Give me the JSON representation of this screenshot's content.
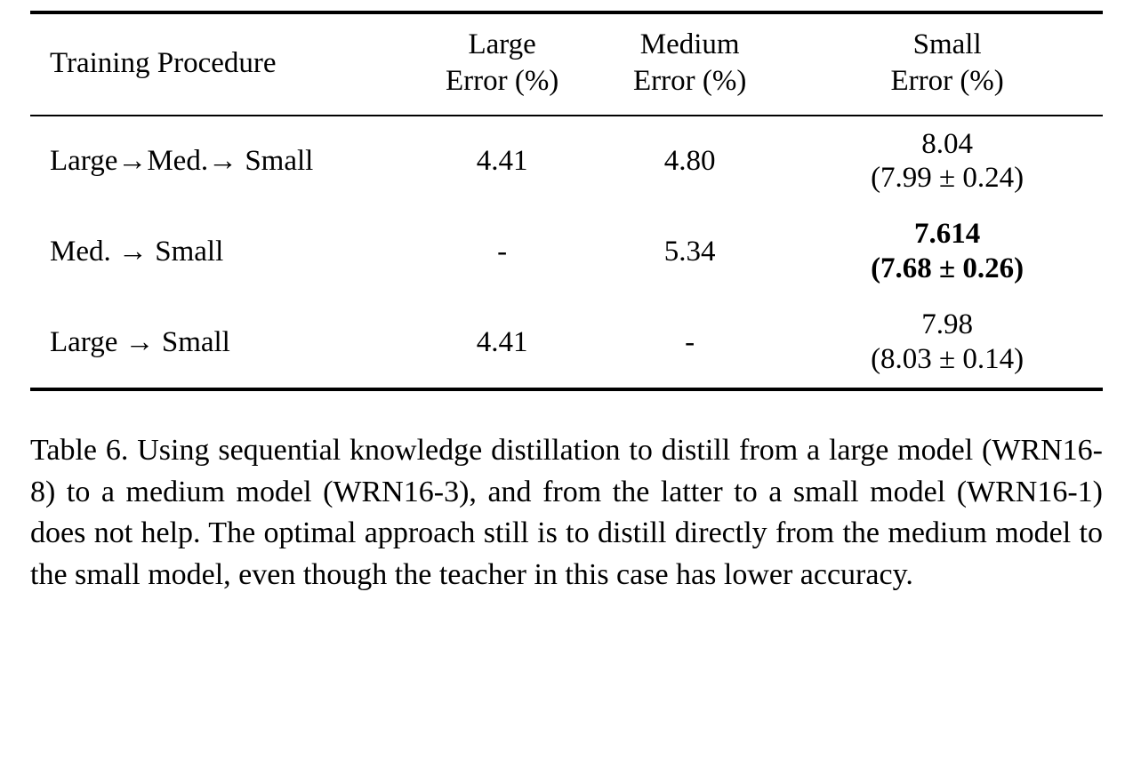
{
  "table": {
    "headers": {
      "procedure": "Training Procedure",
      "large_line1": "Large",
      "large_line2": "Error (%)",
      "medium_line1": "Medium",
      "medium_line2": "Error (%)",
      "small_line1": "Small",
      "small_line2": "Error (%)"
    },
    "rows": [
      {
        "procedure": "Large→Med.→ Small",
        "large": "4.41",
        "medium": "4.80",
        "small_main": "8.04",
        "small_sub": "(7.99 ± 0.24)"
      },
      {
        "procedure": "Med. → Small",
        "large": "-",
        "medium": "5.34",
        "small_main": "7.614",
        "small_sub": "(7.68 ± 0.26)"
      },
      {
        "procedure": "Large → Small",
        "large": "4.41",
        "medium": "-",
        "small_main": "7.98",
        "small_sub": "(8.03 ± 0.14)"
      }
    ]
  },
  "caption": "Table 6. Using sequential knowledge distillation to distill from a large model (WRN16-8) to a medium model (WRN16-3), and from the latter to a small model (WRN16-1) does not help.  The optimal approach still is to distill directly from the medium model to the small model, even though the teacher in this case has lower accuracy."
}
